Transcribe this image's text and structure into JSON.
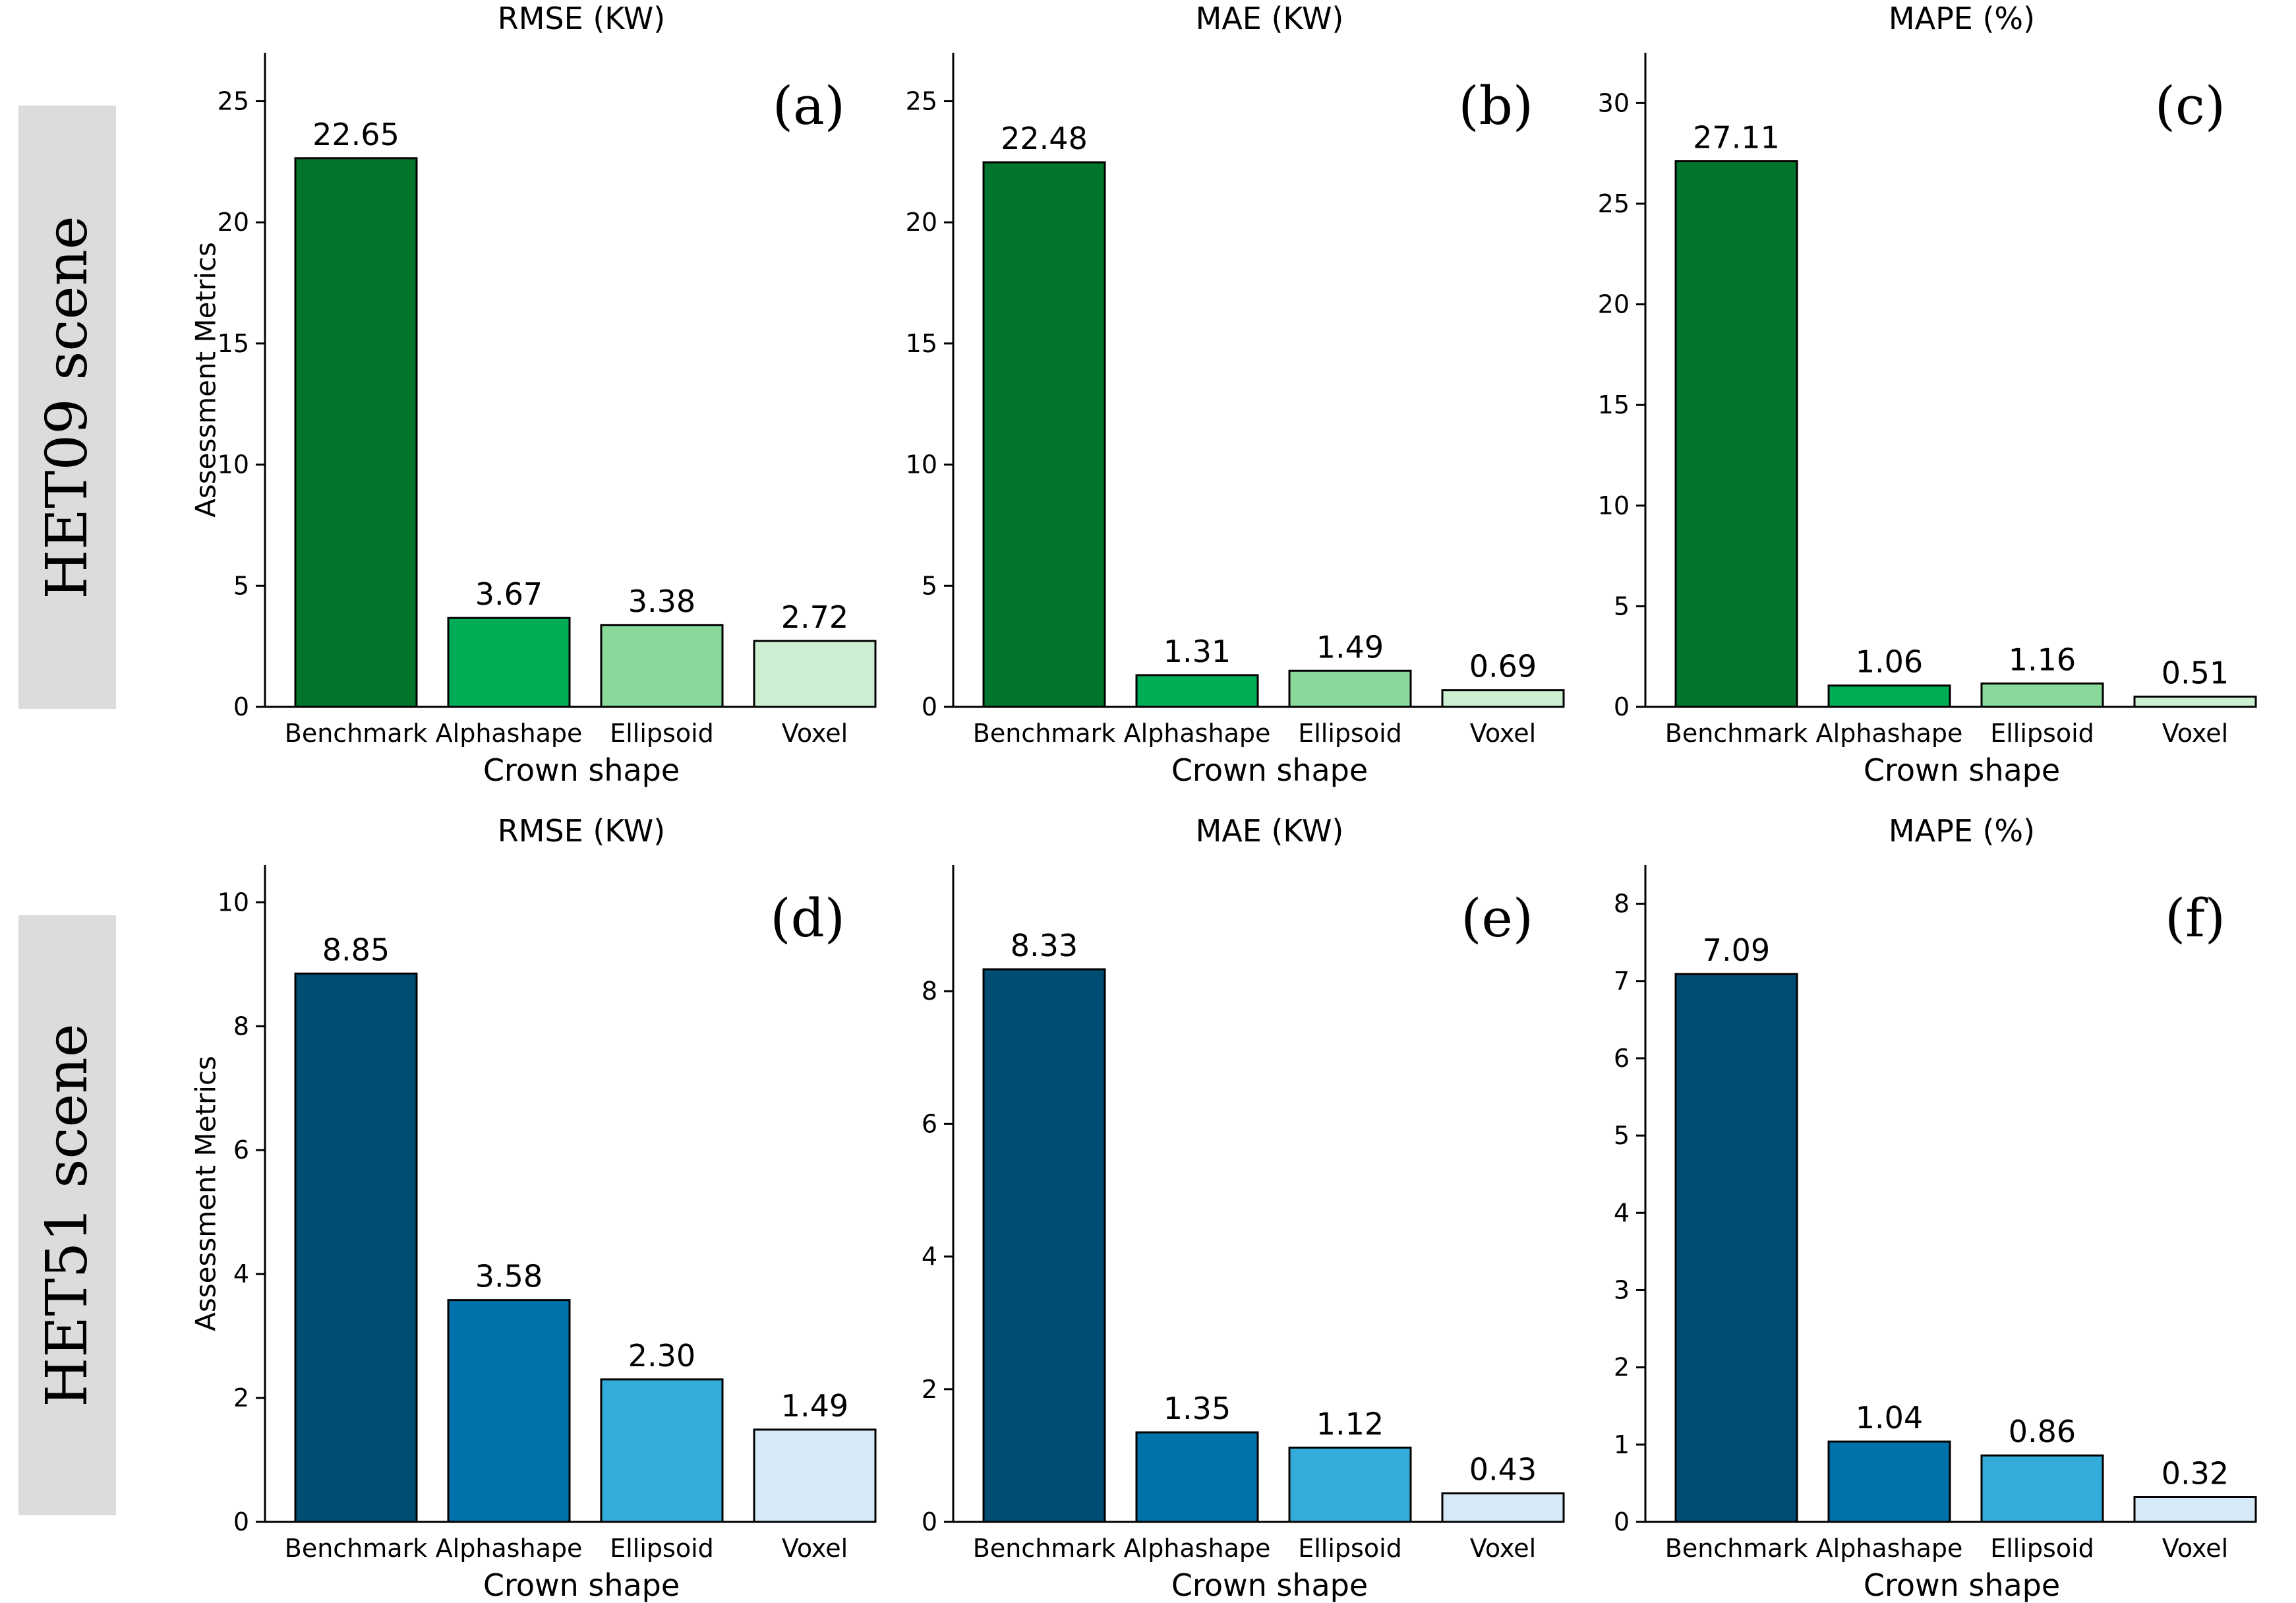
{
  "figure": {
    "rows": [
      {
        "label": "HET09 scene",
        "bg_color": "#dcdcdc"
      },
      {
        "label": "HET51 scene",
        "bg_color": "#dcdcdc"
      }
    ],
    "ylabel": "Assessment Metrics",
    "xlabel": "Crown shape"
  },
  "chart_data": [
    {
      "type": "bar",
      "panel": "(a)",
      "title": "RMSE (KW)",
      "xlabel": "Crown shape",
      "ylabel": "Assessment Metrics",
      "categories": [
        "Benchmark",
        "Alphashape",
        "Ellipsoid",
        "Voxel"
      ],
      "values": [
        22.65,
        3.67,
        3.38,
        2.72
      ],
      "labels": [
        "22.65",
        "3.67",
        "3.38",
        "2.72"
      ],
      "colors": [
        "#00752b",
        "#00ad57",
        "#88d99a",
        "#ccefd1"
      ],
      "ylim": [
        0,
        27
      ],
      "yticks": [
        0,
        5,
        10,
        15,
        20,
        25
      ]
    },
    {
      "type": "bar",
      "panel": "(b)",
      "title": "MAE (KW)",
      "xlabel": "Crown shape",
      "ylabel": "",
      "categories": [
        "Benchmark",
        "Alphashape",
        "Ellipsoid",
        "Voxel"
      ],
      "values": [
        22.48,
        1.31,
        1.49,
        0.69
      ],
      "labels": [
        "22.48",
        "1.31",
        "1.49",
        "0.69"
      ],
      "colors": [
        "#00752b",
        "#00ad57",
        "#88d99a",
        "#ccefd1"
      ],
      "ylim": [
        0,
        27
      ],
      "yticks": [
        0,
        5,
        10,
        15,
        20,
        25
      ]
    },
    {
      "type": "bar",
      "panel": "(c)",
      "title": "MAPE (%)",
      "xlabel": "Crown shape",
      "ylabel": "",
      "categories": [
        "Benchmark",
        "Alphashape",
        "Ellipsoid",
        "Voxel"
      ],
      "values": [
        27.11,
        1.06,
        1.16,
        0.51
      ],
      "labels": [
        "27.11",
        "1.06",
        "1.16",
        "0.51"
      ],
      "colors": [
        "#00752b",
        "#00ad57",
        "#88d99a",
        "#ccefd1"
      ],
      "ylim": [
        0,
        32.5
      ],
      "yticks": [
        0,
        5,
        10,
        15,
        20,
        25,
        30
      ]
    },
    {
      "type": "bar",
      "panel": "(d)",
      "title": "RMSE (KW)",
      "xlabel": "Crown shape",
      "ylabel": "Assessment Metrics",
      "categories": [
        "Benchmark",
        "Alphashape",
        "Ellipsoid",
        "Voxel"
      ],
      "values": [
        8.85,
        3.58,
        2.3,
        1.49
      ],
      "labels": [
        "8.85",
        "3.58",
        "2.30",
        "1.49"
      ],
      "colors": [
        "#004d73",
        "#0072aa",
        "#34acd9",
        "#d5e9f6"
      ],
      "ylim": [
        0,
        10.6
      ],
      "yticks": [
        0,
        2,
        4,
        6,
        8,
        10
      ]
    },
    {
      "type": "bar",
      "panel": "(e)",
      "title": "MAE (KW)",
      "xlabel": "Crown shape",
      "ylabel": "",
      "categories": [
        "Benchmark",
        "Alphashape",
        "Ellipsoid",
        "Voxel"
      ],
      "values": [
        8.33,
        1.35,
        1.12,
        0.43
      ],
      "labels": [
        "8.33",
        "1.35",
        "1.12",
        "0.43"
      ],
      "colors": [
        "#004d73",
        "#0072aa",
        "#34acd9",
        "#d5e9f6"
      ],
      "ylim": [
        0,
        9.9
      ],
      "yticks": [
        0,
        2,
        4,
        6,
        8
      ]
    },
    {
      "type": "bar",
      "panel": "(f)",
      "title": "MAPE (%)",
      "xlabel": "Crown shape",
      "ylabel": "",
      "categories": [
        "Benchmark",
        "Alphashape",
        "Ellipsoid",
        "Voxel"
      ],
      "values": [
        7.09,
        1.04,
        0.86,
        0.32
      ],
      "labels": [
        "7.09",
        "1.04",
        "0.86",
        "0.32"
      ],
      "colors": [
        "#004d73",
        "#0072aa",
        "#34acd9",
        "#d5e9f6"
      ],
      "ylim": [
        0,
        8.5
      ],
      "yticks": [
        0,
        1,
        2,
        3,
        4,
        5,
        6,
        7,
        8
      ]
    }
  ]
}
